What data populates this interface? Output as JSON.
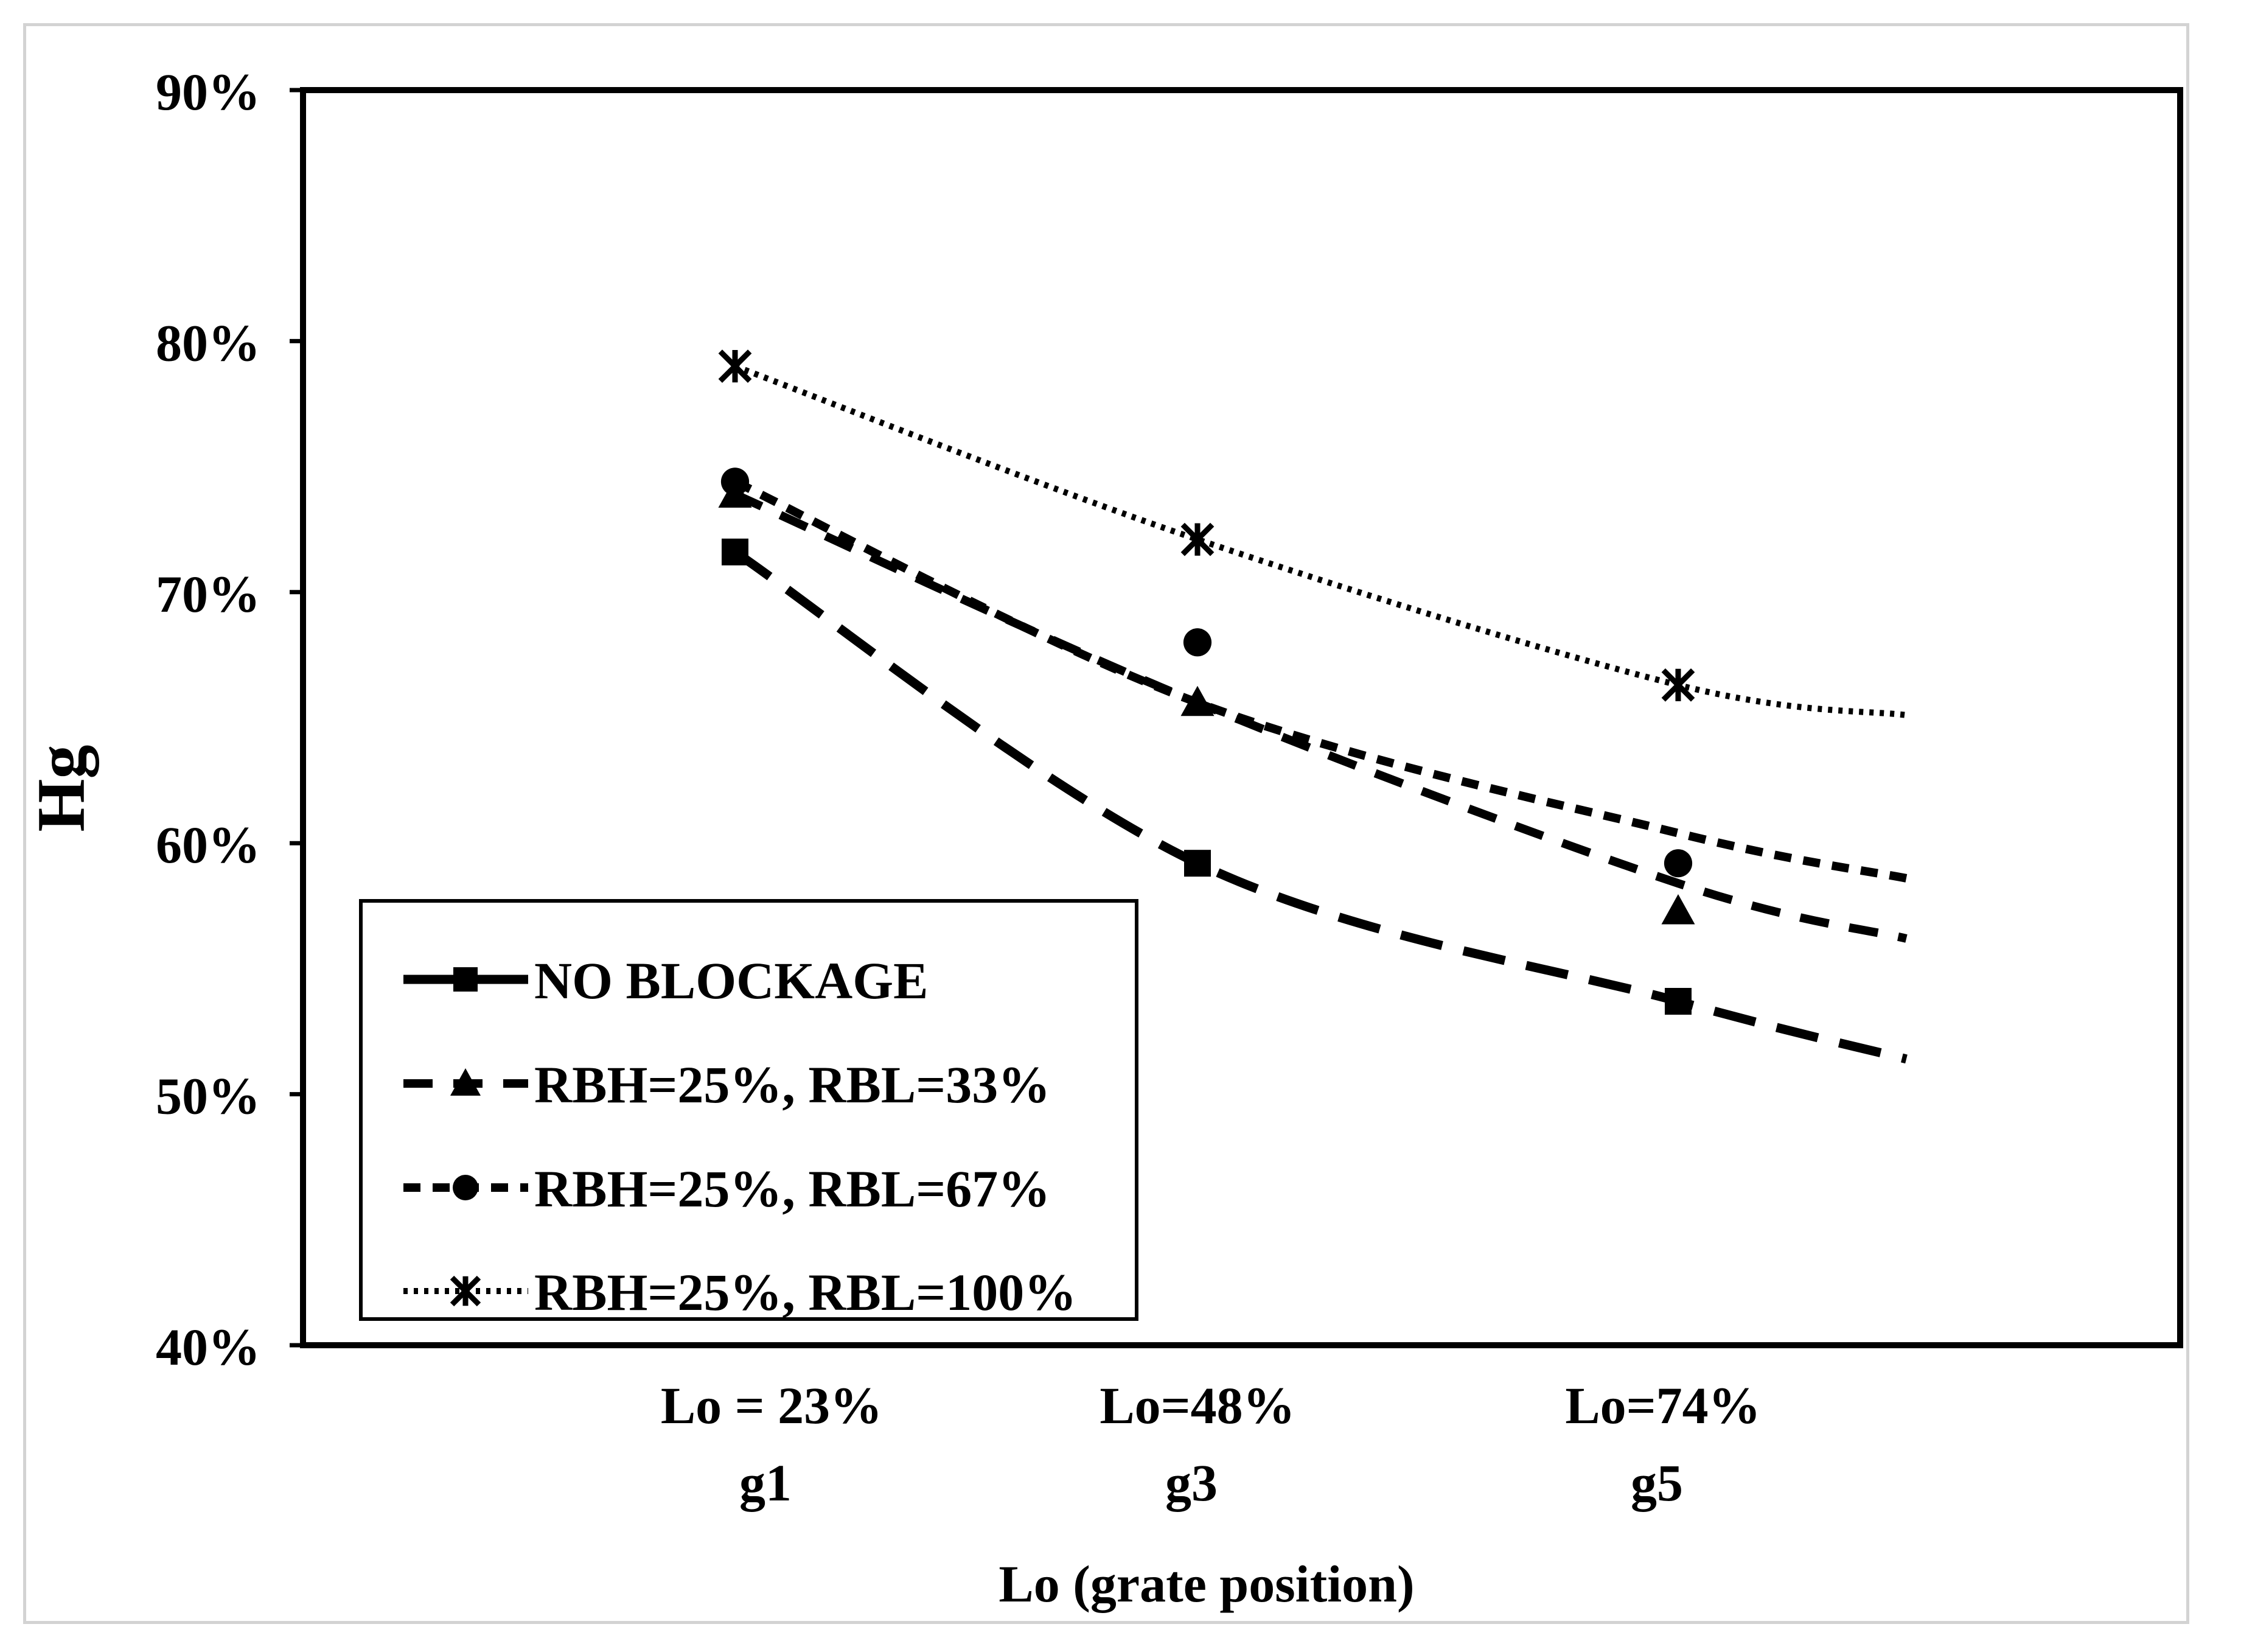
{
  "chart_data": {
    "type": "scatter",
    "xlabel": "Lo (grate position)",
    "ylabel": "Hg",
    "ylim": [
      0.4,
      0.9
    ],
    "yticks": [
      "40%",
      "50%",
      "60%",
      "70%",
      "80%",
      "90%"
    ],
    "ytick_values": [
      0.4,
      0.5,
      0.6,
      0.7,
      0.8,
      0.9
    ],
    "categories": [
      {
        "line1": "Lo = 23%",
        "line2": "g1"
      },
      {
        "line1": "Lo=48%",
        "line2": "g3"
      },
      {
        "line1": "Lo=74%",
        "line2": "g5"
      }
    ],
    "grid": false,
    "legend_position": "bottom-left",
    "series": [
      {
        "name": "NO BLOCKAGE",
        "marker": "square",
        "line": "long-dash",
        "values": [
          0.716,
          0.592,
          0.537
        ],
        "trend_end": 0.514
      },
      {
        "name": "RBH=25%, RBL=33%",
        "marker": "triangle",
        "line": "dash",
        "values": [
          0.739,
          0.656,
          0.573
        ],
        "trend_end": 0.562
      },
      {
        "name": "RBH=25%, RBL=67%",
        "marker": "circle",
        "line": "short-dash",
        "values": [
          0.744,
          0.68,
          0.592
        ],
        "trend_end": 0.586
      },
      {
        "name": "RBH=25%, RBL=100%",
        "marker": "star",
        "line": "dotted",
        "values": [
          0.79,
          0.721,
          0.663
        ],
        "trend_end": 0.651
      }
    ]
  }
}
